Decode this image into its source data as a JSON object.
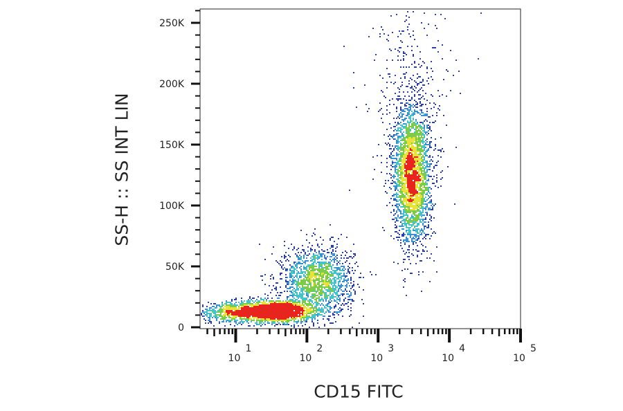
{
  "chart_data": {
    "type": "scatter",
    "subtype": "density-dot-plot",
    "xlabel": "CD15 FITC",
    "ylabel": "SS-H :: SS INT LIN",
    "x_scale": "log",
    "xlim": [
      3.16,
      100000
    ],
    "ylim": [
      0,
      261000
    ],
    "x_ticks": [
      {
        "value": 10,
        "base": "10",
        "exp": "1"
      },
      {
        "value": 100,
        "base": "10",
        "exp": "2"
      },
      {
        "value": 1000,
        "base": "10",
        "exp": "3"
      },
      {
        "value": 10000,
        "base": "10",
        "exp": "4"
      },
      {
        "value": 100000,
        "base": "10",
        "exp": "5"
      }
    ],
    "y_ticks": [
      {
        "value": 0,
        "label": "0"
      },
      {
        "value": 50000,
        "label": "50K"
      },
      {
        "value": 100000,
        "label": "100K"
      },
      {
        "value": 150000,
        "label": "150K"
      },
      {
        "value": 200000,
        "label": "200K"
      },
      {
        "value": 250000,
        "label": "250K"
      }
    ],
    "populations": [
      {
        "x_center": 35,
        "x_log_sd": 0.3,
        "y_center": 13000,
        "y_sd": 4500,
        "events": 2600
      },
      {
        "x_center": 8,
        "x_log_sd": 0.25,
        "y_center": 12000,
        "y_sd": 4000,
        "events": 500
      },
      {
        "x_center": 140,
        "x_log_sd": 0.25,
        "y_center": 38000,
        "y_sd": 14000,
        "events": 1800
      },
      {
        "x_center": 3000,
        "x_log_sd": 0.13,
        "y_center": 125000,
        "y_sd": 28000,
        "events": 3200
      },
      {
        "x_center": 3000,
        "x_log_sd": 0.3,
        "y_center": 190000,
        "y_sd": 40000,
        "events": 350
      }
    ],
    "density_colors": [
      "#2b3f9e",
      "#3a8fd0",
      "#45c3c8",
      "#7ccc4a",
      "#e8e33a",
      "#e8241f"
    ],
    "grid": false,
    "legend": "none"
  }
}
